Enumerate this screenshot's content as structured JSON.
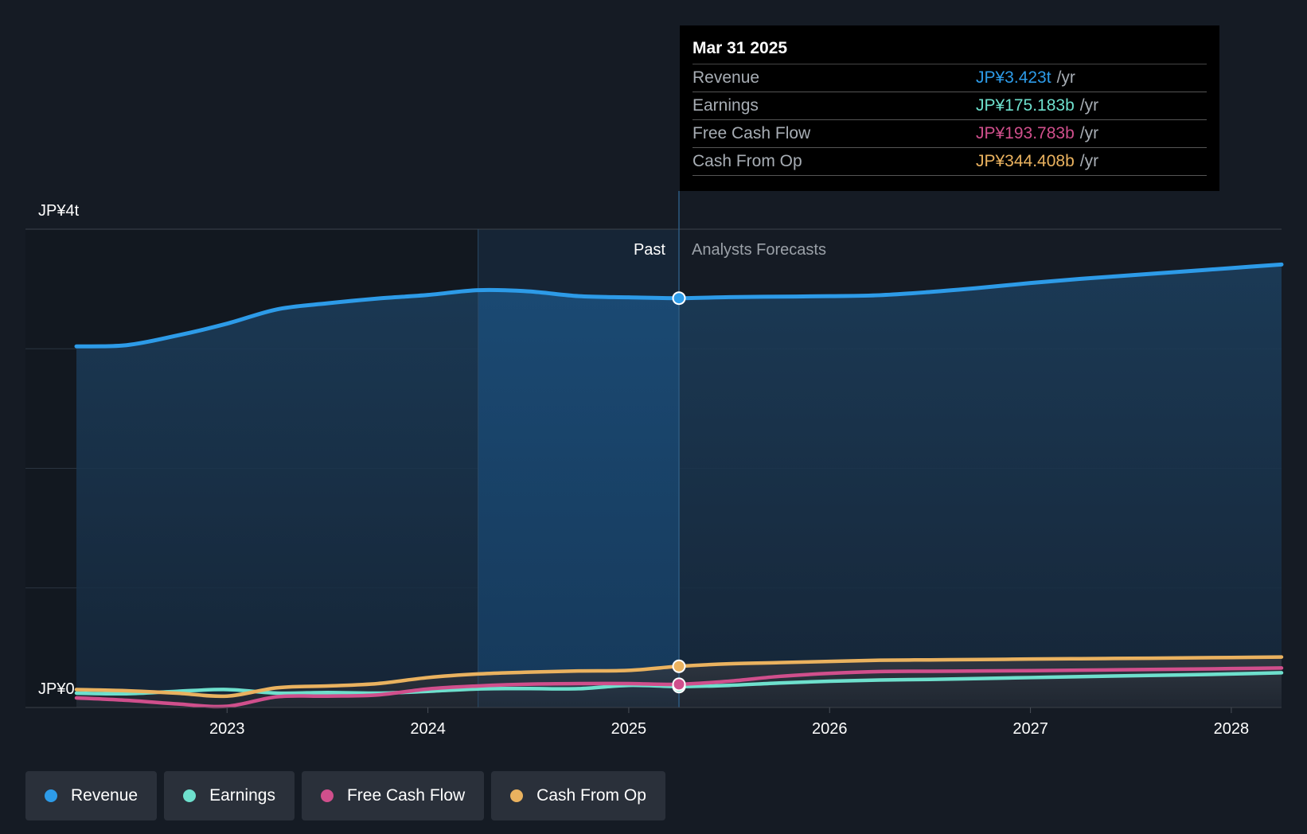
{
  "colors": {
    "revenue": "#2d9be8",
    "earnings": "#6ee0cd",
    "free_cash_flow": "#d04f8c",
    "cash_from_op": "#eab25f",
    "background": "#151b24"
  },
  "tooltip": {
    "date": "Mar 31 2025",
    "rows": [
      {
        "name": "Revenue",
        "value": "JP¥3.423t",
        "unit": "/yr"
      },
      {
        "name": "Earnings",
        "value": "JP¥175.183b",
        "unit": "/yr"
      },
      {
        "name": "Free Cash Flow",
        "value": "JP¥193.783b",
        "unit": "/yr"
      },
      {
        "name": "Cash From Op",
        "value": "JP¥344.408b",
        "unit": "/yr"
      }
    ]
  },
  "legend": [
    {
      "name": "Revenue",
      "icon": "revenue-dot"
    },
    {
      "name": "Earnings",
      "icon": "earnings-dot"
    },
    {
      "name": "Free Cash Flow",
      "icon": "fcf-dot"
    },
    {
      "name": "Cash From Op",
      "icon": "cfo-dot"
    }
  ],
  "chart_data": {
    "type": "line",
    "ylabel_top": "JP¥4t",
    "ylabel_bottom": "JP¥0",
    "ylim": [
      0,
      4000
    ],
    "xlim": [
      2022.25,
      2028.25
    ],
    "x_ticks": [
      2023,
      2024,
      2025,
      2026,
      2027,
      2028
    ],
    "x_tick_labels": [
      "2023",
      "2024",
      "2025",
      "2026",
      "2027",
      "2028"
    ],
    "past_label": "Past",
    "forecast_label": "Analysts Forecasts",
    "divider_x": 2025.25,
    "highlight_start_x": 2024.25,
    "grid": true,
    "legend_position": "bottom-left",
    "series": [
      {
        "name": "Revenue",
        "x": [
          2022.25,
          2022.5,
          2022.75,
          2023.0,
          2023.25,
          2023.5,
          2023.75,
          2024.0,
          2024.25,
          2024.5,
          2024.75,
          2025.0,
          2025.25,
          2025.5,
          2025.75,
          2026.0,
          2026.25,
          2026.5,
          2026.75,
          2027.0,
          2027.25,
          2027.5,
          2027.75,
          2028.0,
          2028.25
        ],
        "values": [
          3020,
          3030,
          3110,
          3210,
          3330,
          3380,
          3420,
          3450,
          3490,
          3480,
          3440,
          3430,
          3423,
          3432,
          3436,
          3440,
          3448,
          3475,
          3510,
          3550,
          3585,
          3615,
          3645,
          3675,
          3705
        ]
      },
      {
        "name": "Earnings",
        "x": [
          2022.25,
          2022.5,
          2022.75,
          2023.0,
          2023.25,
          2023.5,
          2023.75,
          2024.0,
          2024.25,
          2024.5,
          2024.75,
          2025.0,
          2025.25,
          2025.5,
          2025.75,
          2026.0,
          2026.25,
          2026.5,
          2026.75,
          2027.0,
          2027.25,
          2027.5,
          2027.75,
          2028.0,
          2028.25
        ],
        "values": [
          120,
          115,
          135,
          150,
          120,
          125,
          120,
          135,
          155,
          158,
          157,
          185,
          175,
          185,
          205,
          220,
          230,
          235,
          242,
          250,
          258,
          265,
          272,
          280,
          290
        ]
      },
      {
        "name": "Free Cash Flow",
        "x": [
          2022.25,
          2022.5,
          2022.75,
          2023.0,
          2023.25,
          2023.5,
          2023.75,
          2024.0,
          2024.25,
          2024.5,
          2024.75,
          2025.0,
          2025.25,
          2025.5,
          2025.75,
          2026.0,
          2026.25,
          2026.5,
          2026.75,
          2027.0,
          2027.25,
          2027.5,
          2027.75,
          2028.0,
          2028.25
        ],
        "values": [
          80,
          60,
          30,
          10,
          90,
          95,
          105,
          155,
          180,
          195,
          200,
          200,
          193.783,
          220,
          260,
          285,
          300,
          303,
          305,
          308,
          312,
          316,
          320,
          325,
          330
        ]
      },
      {
        "name": "Cash From Op",
        "x": [
          2022.25,
          2022.5,
          2022.75,
          2023.0,
          2023.25,
          2023.5,
          2023.75,
          2024.0,
          2024.25,
          2024.5,
          2024.75,
          2025.0,
          2025.25,
          2025.5,
          2025.75,
          2026.0,
          2026.25,
          2026.5,
          2026.75,
          2027.0,
          2027.25,
          2027.5,
          2027.75,
          2028.0,
          2028.25
        ],
        "values": [
          150,
          140,
          120,
          95,
          165,
          180,
          200,
          250,
          280,
          295,
          305,
          310,
          344.408,
          365,
          375,
          385,
          395,
          398,
          401,
          405,
          408,
          411,
          414,
          418,
          422
        ]
      }
    ]
  }
}
